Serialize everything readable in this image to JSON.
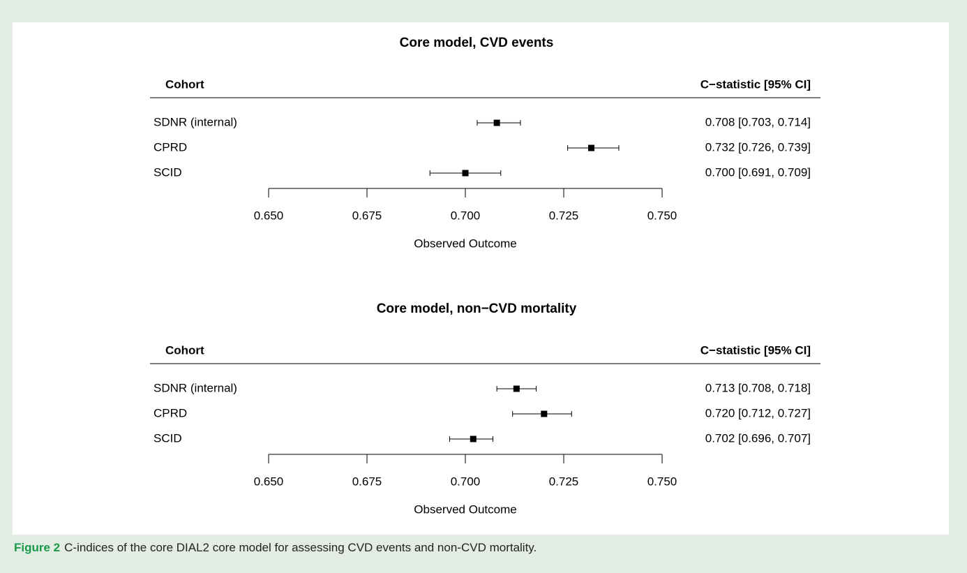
{
  "chart_data": [
    {
      "type": "forest",
      "title": "Core model, CVD events",
      "label_header": "Cohort",
      "value_header": "C−statistic [95% CI]",
      "categories": [
        "SDNR (internal)",
        "CPRD",
        "SCID"
      ],
      "values": [
        0.708,
        0.732,
        0.7
      ],
      "lower": [
        0.703,
        0.726,
        0.691
      ],
      "upper": [
        0.714,
        0.739,
        0.709
      ],
      "value_labels": [
        "0.708 [0.703, 0.714]",
        "0.732 [0.726, 0.739]",
        "0.700 [0.691, 0.709]"
      ],
      "color": "#000000",
      "xlabel": "Observed Outcome",
      "xlim": [
        0.65,
        0.75
      ],
      "xticks": [
        {
          "value": 0.65,
          "label": "0.650"
        },
        {
          "value": 0.675,
          "label": "0.675"
        },
        {
          "value": 0.7,
          "label": "0.700"
        },
        {
          "value": 0.725,
          "label": "0.725"
        },
        {
          "value": 0.75,
          "label": "0.750"
        }
      ]
    },
    {
      "type": "forest",
      "title": "Core model, non−CVD mortality",
      "label_header": "Cohort",
      "value_header": "C−statistic [95% CI]",
      "categories": [
        "SDNR (internal)",
        "CPRD",
        "SCID"
      ],
      "values": [
        0.713,
        0.72,
        0.702
      ],
      "lower": [
        0.708,
        0.712,
        0.696
      ],
      "upper": [
        0.718,
        0.727,
        0.707
      ],
      "value_labels": [
        "0.713 [0.708, 0.718]",
        "0.720 [0.712, 0.727]",
        "0.702 [0.696, 0.707]"
      ],
      "color": "#000000",
      "xlabel": "Observed Outcome",
      "xlim": [
        0.65,
        0.75
      ],
      "xticks": [
        {
          "value": 0.65,
          "label": "0.650"
        },
        {
          "value": 0.675,
          "label": "0.675"
        },
        {
          "value": 0.7,
          "label": "0.700"
        },
        {
          "value": 0.725,
          "label": "0.725"
        },
        {
          "value": 0.75,
          "label": "0.750"
        }
      ]
    }
  ],
  "figure_caption": {
    "label": "Figure 2",
    "text": "C-indices of the core DIAL2 core model for assessing CVD events and non-CVD mortality."
  }
}
